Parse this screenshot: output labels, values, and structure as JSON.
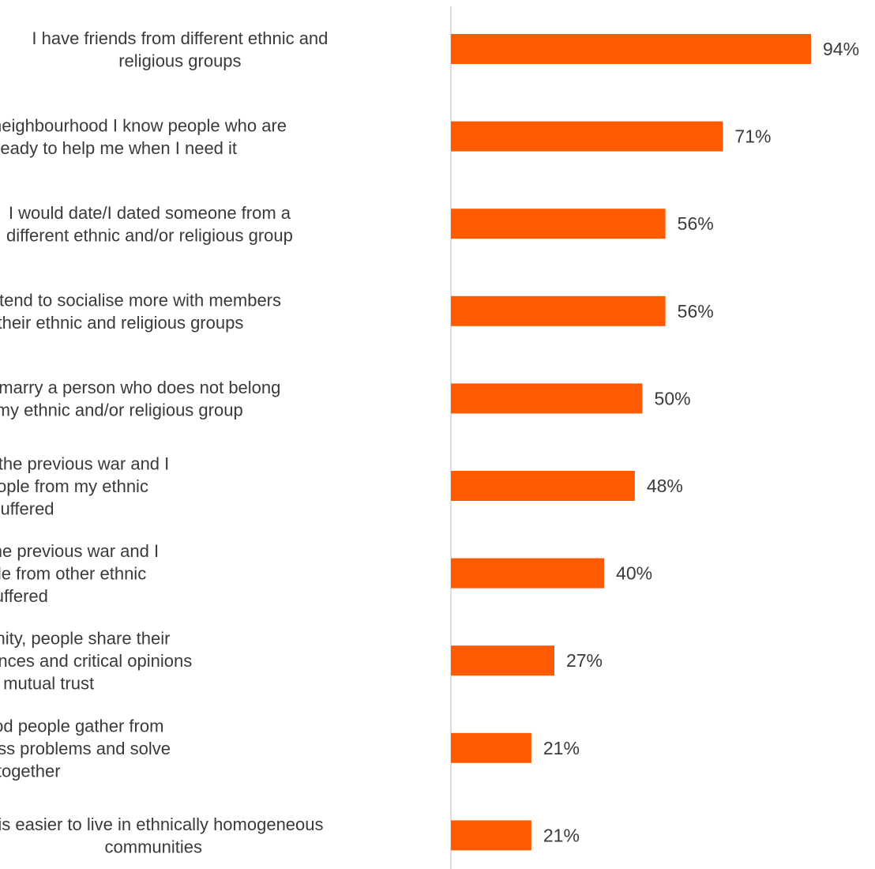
{
  "chart_data": {
    "type": "bar",
    "orientation": "horizontal",
    "title": "",
    "xlabel": "",
    "ylabel": "",
    "xlim": [
      0,
      100
    ],
    "grid": false,
    "legend": "none",
    "bar_color": "#FF5A00",
    "axis_color": "#D0D0D0",
    "value_suffix": "%",
    "categories": [
      [
        "I have friends from different ethnic and",
        "religious groups"
      ],
      [
        "In my neighbourhood I know people who are",
        "ready to help me when I need it"
      ],
      [
        "I would date/I dated someone from a",
        "different ethnic and/or religious group"
      ],
      [
        "People tend to socialise more with members",
        "of their ethnic and religious groups"
      ],
      [
        "I would marry a person who does not belong",
        "to my ethnic and/or religious group"
      ],
      [
        "My parents talk about the previous war and I",
        "know how much people from my ethnic",
        "group suffered"
      ],
      [
        "My parents talk about the previous war and I",
        "know how much people from other ethnic",
        "groups suffered"
      ],
      [
        "In my community, people share their",
        "personal experiences and critical opinions",
        "with mutual trust"
      ],
      [
        "In my neighbourhood people gather from",
        "time to time to discuss problems and solve",
        "them together"
      ],
      [
        "It is easier to live in ethnically homogeneous",
        "communities"
      ]
    ],
    "values": [
      94,
      71,
      56,
      56,
      50,
      48,
      40,
      27,
      21,
      21
    ],
    "value_labels": [
      "94%",
      "71%",
      "56%",
      "56%",
      "50%",
      "48%",
      "40%",
      "27%",
      "21%",
      "21%"
    ]
  }
}
